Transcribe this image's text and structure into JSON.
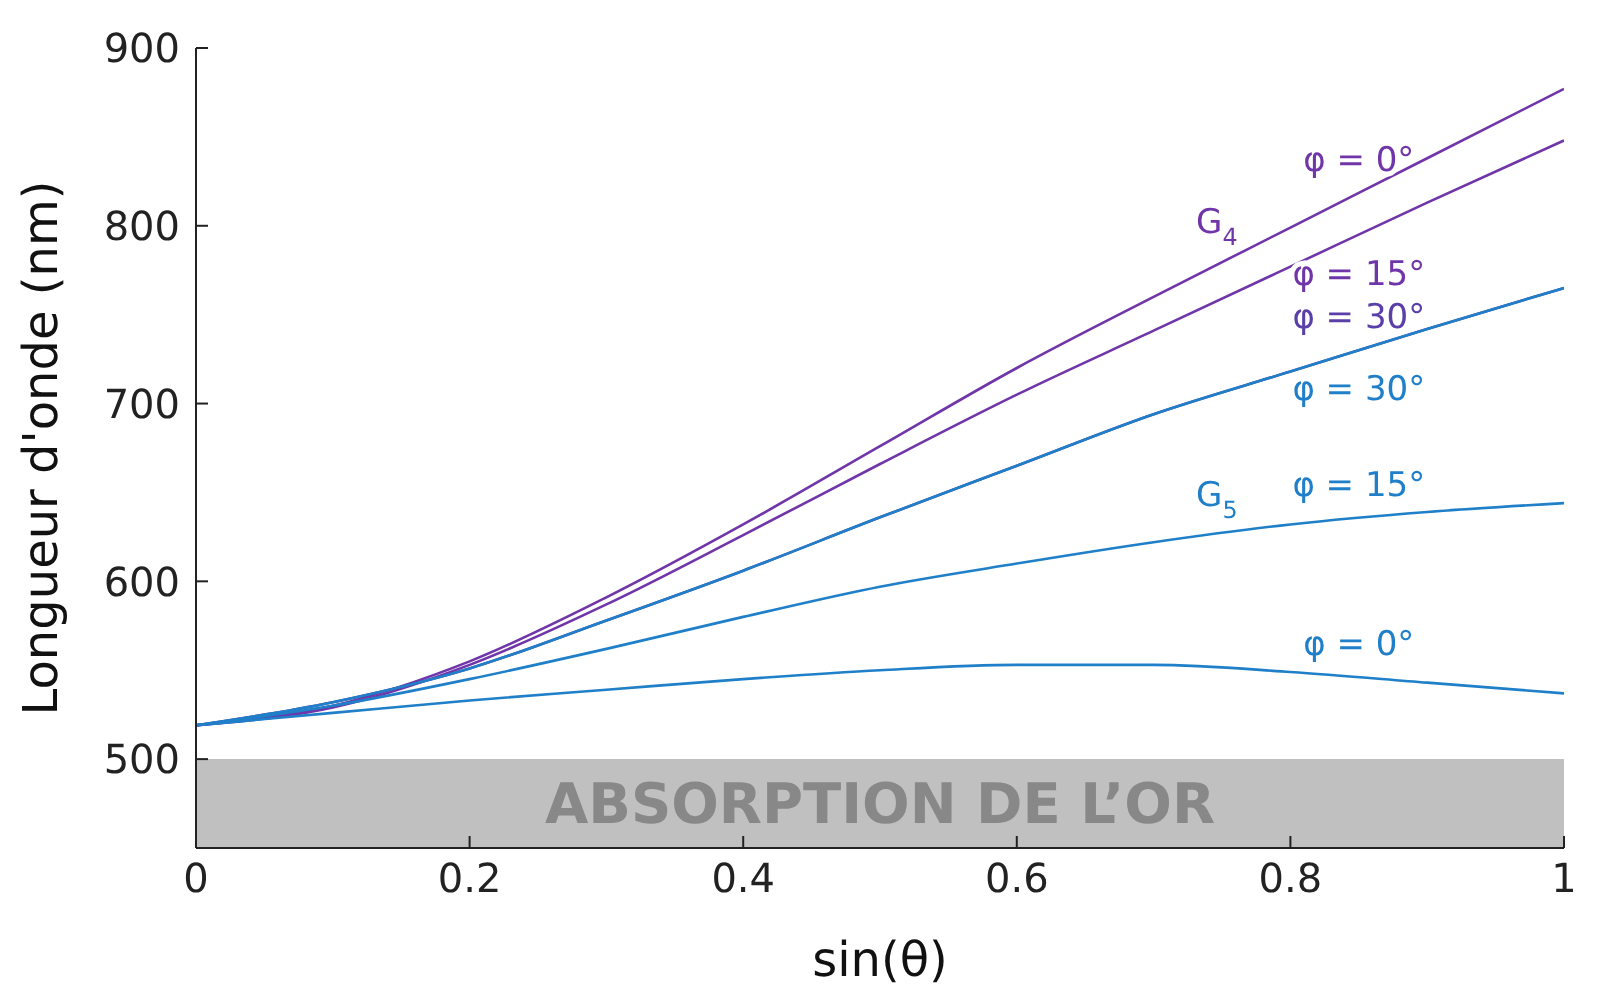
{
  "chart_data": {
    "type": "line",
    "xlabel": "sin(θ)",
    "ylabel": "Longueur d'onde (nm)",
    "x": [
      0,
      0.1,
      0.2,
      0.3,
      0.4,
      0.5,
      0.6,
      0.7,
      0.8,
      0.9,
      1
    ],
    "series": [
      {
        "name": "φ = 0°",
        "color": "#7035a8",
        "values": [
          519,
          530,
          555,
          591,
          632,
          676,
          720,
          760,
          799,
          838,
          877
        ]
      },
      {
        "name": "φ = 15°",
        "color": "#7035a8",
        "values": [
          519,
          529,
          553,
          587,
          626,
          666,
          705,
          741,
          777,
          813,
          848
        ]
      },
      {
        "name": "φ = 30°",
        "color": "#5a3fa8",
        "values": [
          519,
          532,
          551,
          578,
          606,
          636,
          665,
          694,
          718,
          742,
          765
        ]
      },
      {
        "name": "φ = 30°",
        "color": "#1f7fc8",
        "values": [
          519,
          532,
          551,
          578,
          606,
          636,
          665,
          694,
          718,
          742,
          765
        ]
      },
      {
        "name": "φ = 15°",
        "color": "#1f7fc8",
        "values": [
          519,
          530,
          545,
          562,
          580,
          597,
          610,
          622,
          632,
          639,
          644
        ]
      },
      {
        "name": "φ = 0°",
        "color": "#1f7fc8",
        "values": [
          519,
          526,
          533,
          539,
          545,
          550,
          553,
          553,
          549,
          543,
          537
        ]
      }
    ],
    "xlim": [
      0,
      1
    ],
    "xticks": [
      0,
      0.2,
      0.4,
      0.6,
      0.8,
      1
    ],
    "ylim": [
      450,
      900
    ],
    "yticks": [
      500,
      600,
      700,
      800,
      900
    ],
    "grid": false,
    "legend": false,
    "marker": "none",
    "line_style": "solid",
    "bands": [
      {
        "axis": "y",
        "from": 450,
        "to": 500,
        "label": "ABSORPTION DE L’OR",
        "color": "#c0c0c0"
      }
    ],
    "annotations": [
      "G$_{4}$",
      "G$_{5}$"
    ]
  }
}
